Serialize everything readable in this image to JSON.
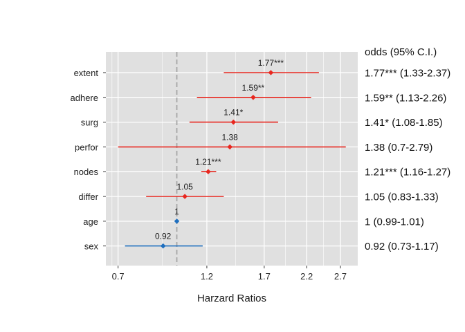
{
  "chart_data": {
    "type": "forest",
    "xlabel": "Harzard Ratios",
    "x_scale": "log",
    "xlim": [
      0.65,
      3.0
    ],
    "x_ticks": [
      0.7,
      1.2,
      1.7,
      2.2,
      2.7
    ],
    "x_tick_labels": [
      "0.7",
      "1.2",
      "1.7",
      "2.2",
      "2.7"
    ],
    "reference_line": 1,
    "grid": true,
    "table_header": "odds (95% C.I.)",
    "rows": [
      {
        "label": "extent",
        "value": 1.77,
        "lower": 1.33,
        "upper": 2.37,
        "point_label": "1.77***",
        "table_text": "1.77*** (1.33-2.37)",
        "color": "#e8271f"
      },
      {
        "label": "adhere",
        "value": 1.59,
        "lower": 1.13,
        "upper": 2.26,
        "point_label": "1.59**",
        "table_text": "1.59** (1.13-2.26)",
        "color": "#e8271f"
      },
      {
        "label": "surg",
        "value": 1.41,
        "lower": 1.08,
        "upper": 1.85,
        "point_label": "1.41*",
        "table_text": "1.41* (1.08-1.85)",
        "color": "#e8271f"
      },
      {
        "label": "perfor",
        "value": 1.38,
        "lower": 0.7,
        "upper": 2.79,
        "point_label": "1.38",
        "table_text": "1.38 (0.7-2.79)",
        "color": "#e8271f"
      },
      {
        "label": "nodes",
        "value": 1.21,
        "lower": 1.16,
        "upper": 1.27,
        "point_label": "1.21***",
        "table_text": "1.21*** (1.16-1.27)",
        "color": "#e8271f"
      },
      {
        "label": "differ",
        "value": 1.05,
        "lower": 0.83,
        "upper": 1.33,
        "point_label": "1.05",
        "table_text": "1.05 (0.83-1.33)",
        "color": "#e8271f"
      },
      {
        "label": "age",
        "value": 1,
        "lower": 0.99,
        "upper": 1.01,
        "point_label": "1",
        "table_text": "1 (0.99-1.01)",
        "color": "#1f6fbf"
      },
      {
        "label": "sex",
        "value": 0.92,
        "lower": 0.73,
        "upper": 1.17,
        "point_label": "0.92",
        "table_text": "0.92 (0.73-1.17)",
        "color": "#1f6fbf"
      }
    ]
  },
  "colors": {
    "panel_background": "#e0e0e0",
    "grid": "#ffffff",
    "reference_line": "#a6a6a6",
    "increase": "#e8271f",
    "decrease": "#1f6fbf"
  }
}
